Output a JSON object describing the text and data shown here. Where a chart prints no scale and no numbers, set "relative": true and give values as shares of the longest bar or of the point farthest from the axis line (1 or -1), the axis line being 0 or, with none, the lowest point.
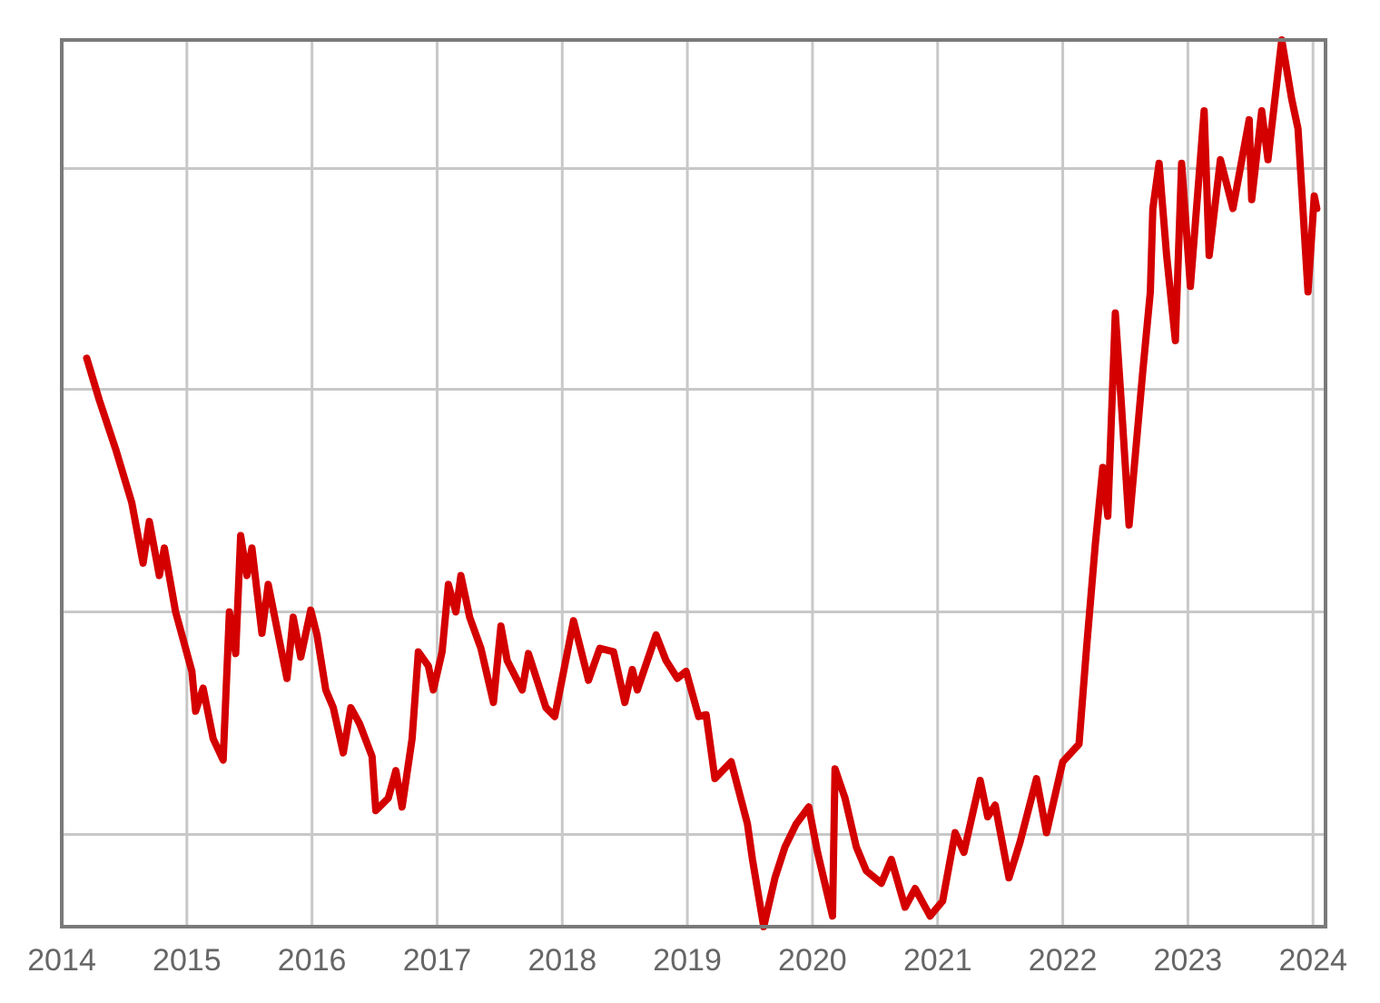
{
  "chart_data": {
    "type": "line",
    "relative": true,
    "xlim": [
      2014,
      2024.1
    ],
    "xticks": [
      2014,
      2015,
      2016,
      2017,
      2018,
      2019,
      2020,
      2021,
      2022,
      2023,
      2024
    ],
    "grid": true,
    "line_style": "solid",
    "series": [
      {
        "color": "#d40000",
        "x": [
          2014.2,
          2014.3,
          2014.43,
          2014.56,
          2014.65,
          2014.7,
          2014.78,
          2014.82,
          2014.91,
          2015.04,
          2015.07,
          2015.13,
          2015.21,
          2015.29,
          2015.34,
          2015.39,
          2015.43,
          2015.48,
          2015.52,
          2015.6,
          2015.65,
          2015.8,
          2015.85,
          2015.91,
          2015.99,
          2016.04,
          2016.11,
          2016.17,
          2016.25,
          2016.31,
          2016.38,
          2016.48,
          2016.51,
          2016.61,
          2016.67,
          2016.72,
          2016.8,
          2016.85,
          2016.93,
          2016.97,
          2017.04,
          2017.09,
          2017.15,
          2017.19,
          2017.26,
          2017.35,
          2017.45,
          2017.51,
          2017.56,
          2017.68,
          2017.73,
          2017.87,
          2017.94,
          2018.0,
          2018.09,
          2018.21,
          2018.3,
          2018.41,
          2018.5,
          2018.56,
          2018.6,
          2018.75,
          2018.83,
          2018.92,
          2018.99,
          2019.09,
          2019.15,
          2019.22,
          2019.35,
          2019.48,
          2019.52,
          2019.61,
          2019.7,
          2019.78,
          2019.87,
          2019.97,
          2020.04,
          2020.16,
          2020.18,
          2020.26,
          2020.35,
          2020.43,
          2020.55,
          2020.63,
          2020.74,
          2020.82,
          2020.94,
          2021.04,
          2021.14,
          2021.21,
          2021.34,
          2021.4,
          2021.46,
          2021.57,
          2021.66,
          2021.79,
          2021.87,
          2022.0,
          2022.13,
          2022.19,
          2022.26,
          2022.32,
          2022.36,
          2022.42,
          2022.47,
          2022.53,
          2022.64,
          2022.7,
          2022.72,
          2022.77,
          2022.83,
          2022.9,
          2022.95,
          2023.02,
          2023.13,
          2023.17,
          2023.26,
          2023.36,
          2023.49,
          2023.51,
          2023.59,
          2023.64,
          2023.75,
          2023.83,
          2023.88,
          2023.96,
          2024.01,
          2024.03
        ],
        "values": [
          0.641,
          0.594,
          0.539,
          0.478,
          0.41,
          0.457,
          0.396,
          0.427,
          0.355,
          0.288,
          0.243,
          0.269,
          0.212,
          0.188,
          0.355,
          0.308,
          0.441,
          0.396,
          0.427,
          0.331,
          0.386,
          0.28,
          0.349,
          0.304,
          0.357,
          0.329,
          0.267,
          0.247,
          0.196,
          0.247,
          0.229,
          0.192,
          0.131,
          0.145,
          0.176,
          0.135,
          0.212,
          0.31,
          0.294,
          0.267,
          0.31,
          0.386,
          0.355,
          0.396,
          0.349,
          0.314,
          0.253,
          0.339,
          0.3,
          0.267,
          0.308,
          0.247,
          0.237,
          0.28,
          0.345,
          0.278,
          0.314,
          0.31,
          0.253,
          0.29,
          0.267,
          0.329,
          0.3,
          0.28,
          0.288,
          0.237,
          0.239,
          0.167,
          0.186,
          0.116,
          0.076,
          0,
          0.055,
          0.09,
          0.116,
          0.135,
          0.084,
          0.012,
          0.178,
          0.145,
          0.09,
          0.063,
          0.049,
          0.076,
          0.022,
          0.043,
          0.012,
          0.029,
          0.106,
          0.084,
          0.165,
          0.124,
          0.137,
          0.055,
          0.096,
          0.167,
          0.106,
          0.186,
          0.206,
          0.314,
          0.431,
          0.518,
          0.463,
          0.692,
          0.586,
          0.453,
          0.627,
          0.716,
          0.81,
          0.861,
          0.757,
          0.661,
          0.861,
          0.722,
          0.92,
          0.757,
          0.865,
          0.81,
          0.91,
          0.82,
          0.92,
          0.865,
          1,
          0.933,
          0.9,
          0.716,
          0.824,
          0.81
        ]
      }
    ]
  }
}
